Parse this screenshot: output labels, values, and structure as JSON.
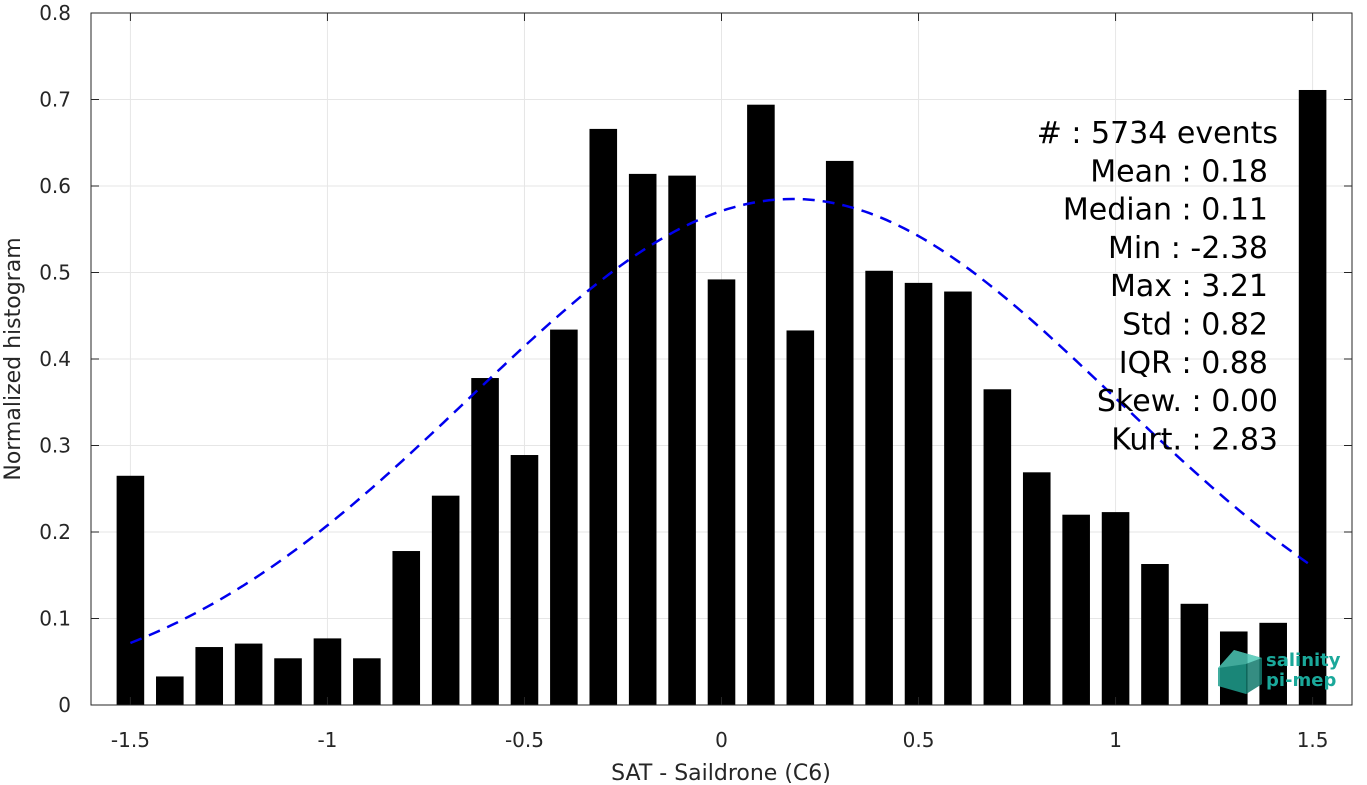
{
  "chart_data": {
    "type": "bar",
    "xlabel": "SAT - Saildrone (C6)",
    "ylabel": "Normalized histogram",
    "xlim": [
      -1.6,
      1.6
    ],
    "ylim": [
      0,
      0.8
    ],
    "xticks": [
      -1.5,
      -1,
      -0.5,
      0,
      0.5,
      1,
      1.5
    ],
    "xtick_labels": [
      "-1.5",
      "-1",
      "-0.5",
      "0",
      "0.5",
      "1",
      "1.5"
    ],
    "yticks": [
      0,
      0.1,
      0.2,
      0.3,
      0.4,
      0.5,
      0.6,
      0.7,
      0.8
    ],
    "ytick_labels": [
      "0",
      "0.1",
      "0.2",
      "0.3",
      "0.4",
      "0.5",
      "0.6",
      "0.7",
      "0.8"
    ],
    "grid": true,
    "bar_color": "#000000",
    "bar_width": 0.07,
    "x": [
      -1.5,
      -1.4,
      -1.3,
      -1.2,
      -1.1,
      -1.0,
      -0.9,
      -0.8,
      -0.7,
      -0.6,
      -0.5,
      -0.4,
      -0.3,
      -0.2,
      -0.1,
      0.0,
      0.1,
      0.2,
      0.3,
      0.4,
      0.5,
      0.6,
      0.7,
      0.8,
      0.9,
      1.0,
      1.1,
      1.2,
      1.3,
      1.4,
      1.5
    ],
    "values": [
      0.265,
      0.033,
      0.067,
      0.071,
      0.054,
      0.077,
      0.054,
      0.178,
      0.242,
      0.378,
      0.289,
      0.434,
      0.666,
      0.614,
      0.612,
      0.492,
      0.694,
      0.433,
      0.629,
      0.502,
      0.488,
      0.478,
      0.365,
      0.269,
      0.22,
      0.223,
      0.163,
      0.117,
      0.085,
      0.095,
      0.711
    ],
    "fit": {
      "type": "normal",
      "mean": 0.18,
      "std": 0.82,
      "peak": 0.585,
      "x_range": [
        -1.5,
        1.5
      ],
      "color": "#0000ee",
      "style": "dashed"
    },
    "annotations": [
      "#  : 5734 events",
      "Mean : 0.18",
      "Median : 0.11",
      "Min : -2.38",
      "Max : 3.21",
      "Std : 0.82",
      "IQR : 0.88",
      "Skew. : 0.00",
      "Kurt. : 2.83"
    ]
  },
  "logo": {
    "line1": "salinity",
    "line2": "pi-mep",
    "color": "#1aa89a"
  }
}
